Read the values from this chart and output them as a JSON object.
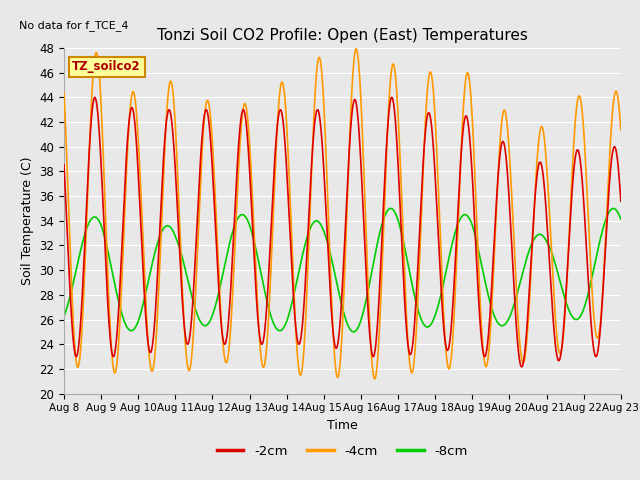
{
  "title": "Tonzi Soil CO2 Profile: Open (East) Temperatures",
  "no_data_label": "No data for f_TCE_4",
  "ylabel": "Soil Temperature (C)",
  "xlabel": "Time",
  "annotation": "TZ_soilco2",
  "ylim": [
    20,
    48
  ],
  "bg_color": "#e8e8e8",
  "series": [
    {
      "label": "-2cm",
      "color": "#dd0000"
    },
    {
      "label": "-4cm",
      "color": "#ff9900"
    },
    {
      "label": "-8cm",
      "color": "#00cc00"
    }
  ],
  "x_ticks": [
    "Aug 8",
    "Aug 9",
    "Aug 10",
    "Aug 11",
    "Aug 12",
    "Aug 13",
    "Aug 14",
    "Aug 15",
    "Aug 16",
    "Aug 17",
    "Aug 18",
    "Aug 19",
    "Aug 20",
    "Aug 21",
    "Aug 22",
    "Aug 23"
  ],
  "num_days": 15,
  "points_per_day": 96,
  "mean_2cm": 33.5,
  "mean_4cm": 34.5,
  "mean_8cm": 31.0,
  "amp_2cm": 10.5,
  "amp_4cm": 13.0,
  "amp_8cm": 4.5,
  "phase_2cm": 0.58,
  "phase_4cm": 0.62,
  "phase_8cm_freq_ratio": 0.5,
  "phase_8cm": 0.3
}
